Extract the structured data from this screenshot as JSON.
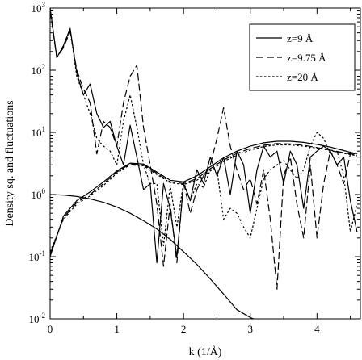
{
  "chart_data": {
    "type": "line",
    "title": "",
    "xlabel": "k (1/Å)",
    "ylabel": "Density sq. and fluctuations",
    "xlim": [
      0,
      4.65
    ],
    "ylim": [
      0.01,
      1000
    ],
    "yscale": "log",
    "grid": false,
    "legend_position": "top-right",
    "x_ticks": [
      {
        "value": 0,
        "label": "0"
      },
      {
        "value": 1,
        "label": "1"
      },
      {
        "value": 2,
        "label": "2"
      },
      {
        "value": 3,
        "label": "3"
      },
      {
        "value": 4,
        "label": "4"
      }
    ],
    "y_ticks": [
      {
        "value": 0.01,
        "base": "10",
        "exp": "-2"
      },
      {
        "value": 0.1,
        "base": "10",
        "exp": "-1"
      },
      {
        "value": 1,
        "base": "10",
        "exp": "0"
      },
      {
        "value": 10,
        "base": "10",
        "exp": "1"
      },
      {
        "value": 100,
        "base": "10",
        "exp": "2"
      },
      {
        "value": 1000,
        "base": "10",
        "exp": "3"
      }
    ],
    "series": [
      {
        "name": "z=9 Å",
        "dash": "solid",
        "in_legend": true,
        "x": [
          0,
          0.1,
          0.2,
          0.3,
          0.4,
          0.5,
          0.6,
          0.7,
          0.8,
          0.9,
          1.0,
          1.1,
          1.2,
          1.3,
          1.4,
          1.5,
          1.6,
          1.7,
          1.8,
          1.9,
          2.0,
          2.1,
          2.2,
          2.3,
          2.4,
          2.5,
          2.6,
          2.7,
          2.8,
          2.9,
          3.0,
          3.1,
          3.2,
          3.3,
          3.4,
          3.5,
          3.6,
          3.7,
          3.8,
          3.9,
          4.0,
          4.1,
          4.2,
          4.3,
          4.4,
          4.5,
          4.6
        ],
        "y": [
          1000,
          160,
          250,
          470,
          90,
          40,
          60,
          20,
          12,
          15,
          6,
          3,
          13,
          4,
          1.2,
          1.5,
          0.08,
          1.5,
          0.6,
          0.1,
          1.5,
          0.8,
          2.5,
          1.5,
          4,
          2,
          4,
          1,
          5,
          3,
          0.5,
          2.5,
          6,
          4,
          5,
          1.5,
          5,
          3,
          0.6,
          4,
          5,
          6,
          5,
          3,
          4,
          0.8,
          0.25
        ]
      },
      {
        "name": "z=9.75 Å",
        "dash": "long",
        "in_legend": true,
        "x": [
          0,
          0.1,
          0.2,
          0.3,
          0.4,
          0.5,
          0.6,
          0.7,
          0.8,
          0.9,
          1.0,
          1.1,
          1.2,
          1.3,
          1.4,
          1.5,
          1.6,
          1.7,
          1.8,
          1.9,
          2.0,
          2.1,
          2.2,
          2.3,
          2.4,
          2.5,
          2.6,
          2.7,
          2.8,
          2.9,
          3.0,
          3.1,
          3.2,
          3.3,
          3.4,
          3.5,
          3.6,
          3.7,
          3.8,
          3.9,
          4.0,
          4.1,
          4.2,
          4.3,
          4.4,
          4.5,
          4.6
        ],
        "y": [
          900,
          160,
          230,
          420,
          100,
          50,
          30,
          4.5,
          15,
          12,
          6,
          30,
          80,
          120,
          12,
          3,
          0.7,
          0.07,
          0.7,
          0.08,
          1.6,
          0.5,
          1.2,
          2,
          3,
          8,
          25,
          6,
          2.5,
          1.2,
          1.8,
          0.7,
          2.5,
          0.4,
          0.03,
          2,
          4,
          0.7,
          0.2,
          3,
          0.2,
          1.5,
          5,
          3,
          1.5,
          4.5,
          4.5
        ]
      },
      {
        "name": "z=20 Å",
        "dash": "dotted",
        "in_legend": true,
        "x": [
          0,
          0.1,
          0.2,
          0.3,
          0.4,
          0.5,
          0.6,
          0.7,
          0.8,
          0.9,
          1.0,
          1.1,
          1.2,
          1.3,
          1.4,
          1.5,
          1.6,
          1.7,
          1.8,
          1.9,
          2.0,
          2.1,
          2.2,
          2.3,
          2.4,
          2.5,
          2.6,
          2.7,
          2.8,
          2.9,
          3.0,
          3.1,
          3.2,
          3.3,
          3.4,
          3.5,
          3.6,
          3.7,
          3.8,
          3.9,
          4.0,
          4.1,
          4.2,
          4.3,
          4.4,
          4.5,
          4.6
        ],
        "y": [
          950,
          160,
          240,
          450,
          80,
          40,
          20,
          8,
          6,
          5,
          3,
          15,
          40,
          12,
          3,
          1.5,
          1.5,
          0.15,
          1.4,
          0.3,
          1.6,
          0.8,
          1.5,
          1.3,
          2.5,
          2.5,
          0.4,
          0.6,
          0.5,
          0.3,
          0.2,
          0.6,
          1.8,
          2.5,
          3,
          3.5,
          2.5,
          1.8,
          2.5,
          6,
          10,
          8,
          4.5,
          5,
          2,
          0.25,
          0.7
        ]
      },
      {
        "name": "",
        "dash": "solid",
        "in_legend": false,
        "x": [
          0,
          0.2,
          0.4,
          0.6,
          0.8,
          1.0,
          1.2,
          1.4,
          1.6,
          1.8,
          2.0,
          2.2,
          2.4,
          2.6,
          2.8,
          3.0,
          3.2,
          3.4,
          3.6,
          3.8,
          4.0,
          4.2,
          4.4,
          4.6
        ],
        "y": [
          0.1,
          0.45,
          0.8,
          1.1,
          1.6,
          2.4,
          3.2,
          3.1,
          2.3,
          1.7,
          1.6,
          2.0,
          2.8,
          3.9,
          5.0,
          6.0,
          6.8,
          7.2,
          7.2,
          6.9,
          6.4,
          5.8,
          5.1,
          4.5
        ]
      },
      {
        "name": "",
        "dash": "long",
        "in_legend": false,
        "x": [
          0,
          0.2,
          0.4,
          0.6,
          0.8,
          1.0,
          1.2,
          1.4,
          1.6,
          1.8,
          2.0,
          2.2,
          2.4,
          2.6,
          2.8,
          3.0,
          3.2,
          3.4,
          3.6,
          3.8,
          4.0,
          4.2,
          4.4,
          4.6
        ],
        "y": [
          0.11,
          0.42,
          0.75,
          1.0,
          1.5,
          2.3,
          3.1,
          3.0,
          2.2,
          1.6,
          1.5,
          1.8,
          2.6,
          3.6,
          4.6,
          5.5,
          6.2,
          6.6,
          6.5,
          6.2,
          5.7,
          5.2,
          4.7,
          4.3
        ]
      },
      {
        "name": "",
        "dash": "dotted",
        "in_legend": false,
        "x": [
          0,
          0.2,
          0.4,
          0.6,
          0.8,
          1.0,
          1.2,
          1.4,
          1.6,
          1.8,
          2.0,
          2.2,
          2.4,
          2.6,
          2.8,
          3.0,
          3.2,
          3.4,
          3.6,
          3.8,
          4.0,
          4.2,
          4.4,
          4.6
        ],
        "y": [
          0.12,
          0.4,
          0.7,
          0.95,
          1.4,
          2.2,
          3.0,
          2.9,
          2.1,
          1.55,
          1.45,
          1.7,
          2.4,
          3.4,
          4.3,
          5.2,
          5.9,
          6.3,
          6.3,
          6.0,
          5.6,
          5.1,
          4.6,
          4.2
        ]
      },
      {
        "name": "",
        "dash": "solid",
        "in_legend": false,
        "x": [
          0,
          0.2,
          0.4,
          0.6,
          0.8,
          1.0,
          1.2,
          1.4,
          1.6,
          1.8,
          2.0,
          2.2,
          2.4,
          2.6,
          2.8,
          3.0,
          3.05
        ],
        "y": [
          1.0,
          0.98,
          0.93,
          0.85,
          0.75,
          0.63,
          0.5,
          0.38,
          0.28,
          0.19,
          0.12,
          0.075,
          0.044,
          0.025,
          0.014,
          0.0105,
          0.01
        ]
      }
    ]
  }
}
